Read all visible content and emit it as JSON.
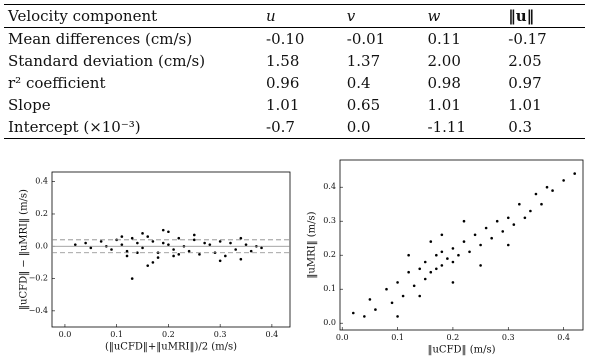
{
  "table": {
    "header": [
      "Velocity component",
      "u",
      "v",
      "w",
      "‖u‖"
    ],
    "rows": [
      [
        "Mean differences (cm/s)",
        "-0.10",
        "-0.01",
        "0.11",
        "-0.17"
      ],
      [
        "Standard deviation (cm/s)",
        "1.58",
        "1.37",
        "2.00",
        "2.05"
      ],
      [
        "r² coefficient",
        "0.96",
        "0.4",
        "0.98",
        "0.97"
      ],
      [
        "Slope",
        "1.01",
        "0.65",
        "1.01",
        "1.01"
      ],
      [
        "Intercept (×10⁻³)",
        "-0.7",
        "0.0",
        "-1.11",
        "0.3"
      ]
    ]
  },
  "chart_data": [
    {
      "type": "scatter",
      "xlabel": "(‖uCFD‖+‖uMRI‖)/2 (m/s)",
      "ylabel": "‖uCFD‖ − ‖uMRI‖ (m/s)",
      "color": "#000000",
      "xlim": [
        -0.025,
        0.435
      ],
      "ylim": [
        -0.5,
        0.46
      ],
      "xticks": [
        {
          "value": 0,
          "label": "0.0"
        },
        0.1,
        0.2,
        0.3,
        0.4
      ],
      "yticks": [
        {
          "value": -0.4,
          "label": "−0.4"
        },
        {
          "value": -0.2,
          "label": "−0.2"
        },
        {
          "value": 0,
          "label": "0.0"
        },
        0.2,
        0.4
      ],
      "hlines": [
        {
          "value": 0.04,
          "style": "dashed"
        },
        {
          "value": 0,
          "style": "solid"
        },
        {
          "value": -0.04,
          "style": "dashed"
        }
      ],
      "x": [
        0.02,
        0.04,
        0.05,
        0.07,
        0.08,
        0.09,
        0.1,
        0.11,
        0.12,
        0.13,
        0.14,
        0.15,
        0.16,
        0.17,
        0.18,
        0.19,
        0.2,
        0.21,
        0.22,
        0.23,
        0.24,
        0.25,
        0.26,
        0.27,
        0.28,
        0.29,
        0.3,
        0.31,
        0.32,
        0.33,
        0.34,
        0.35,
        0.36,
        0.37,
        0.38,
        0.12,
        0.15,
        0.18,
        0.2,
        0.22,
        0.13,
        0.17,
        0.25,
        0.3,
        0.11,
        0.14,
        0.19,
        0.16,
        0.21,
        0.34
      ],
      "y": [
        0.01,
        0.02,
        -0.01,
        0.03,
        0.0,
        -0.02,
        0.04,
        0.01,
        -0.03,
        0.05,
        0.02,
        -0.01,
        0.06,
        0.03,
        -0.04,
        0.02,
        0.01,
        -0.02,
        0.05,
        0.0,
        -0.03,
        0.04,
        -0.05,
        0.02,
        0.01,
        -0.04,
        0.03,
        -0.06,
        0.02,
        -0.02,
        -0.08,
        0.01,
        -0.03,
        0.0,
        -0.01,
        -0.06,
        0.08,
        -0.07,
        0.09,
        -0.05,
        -0.2,
        -0.1,
        0.07,
        -0.09,
        0.06,
        -0.04,
        0.1,
        -0.12,
        -0.06,
        0.05
      ]
    },
    {
      "type": "scatter",
      "xlabel": "‖uCFD‖ (m/s)",
      "ylabel": "‖uMRI‖ (m/s)",
      "color": "#000000",
      "xlim": [
        -0.004,
        0.435
      ],
      "ylim": [
        -0.02,
        0.48
      ],
      "xticks": [
        {
          "value": 0,
          "label": "0.0"
        },
        0.1,
        0.2,
        0.3,
        0.4
      ],
      "yticks": [
        {
          "value": 0,
          "label": "0.0"
        },
        0.1,
        0.2,
        0.3,
        0.4
      ],
      "x": [
        0.02,
        0.04,
        0.05,
        0.06,
        0.08,
        0.09,
        0.1,
        0.11,
        0.12,
        0.13,
        0.14,
        0.15,
        0.15,
        0.16,
        0.17,
        0.17,
        0.18,
        0.18,
        0.19,
        0.2,
        0.2,
        0.21,
        0.22,
        0.23,
        0.24,
        0.25,
        0.26,
        0.27,
        0.28,
        0.29,
        0.3,
        0.31,
        0.32,
        0.33,
        0.34,
        0.35,
        0.36,
        0.37,
        0.38,
        0.4,
        0.12,
        0.14,
        0.16,
        0.2,
        0.22,
        0.25,
        0.1,
        0.18,
        0.3,
        0.42
      ],
      "y": [
        0.03,
        0.02,
        0.07,
        0.04,
        0.1,
        0.06,
        0.12,
        0.08,
        0.15,
        0.11,
        0.16,
        0.13,
        0.18,
        0.15,
        0.2,
        0.16,
        0.17,
        0.21,
        0.19,
        0.22,
        0.18,
        0.2,
        0.24,
        0.21,
        0.26,
        0.23,
        0.28,
        0.25,
        0.3,
        0.27,
        0.31,
        0.29,
        0.35,
        0.31,
        0.33,
        0.38,
        0.35,
        0.4,
        0.39,
        0.42,
        0.2,
        0.08,
        0.24,
        0.12,
        0.3,
        0.17,
        0.02,
        0.26,
        0.23,
        0.44
      ]
    }
  ]
}
